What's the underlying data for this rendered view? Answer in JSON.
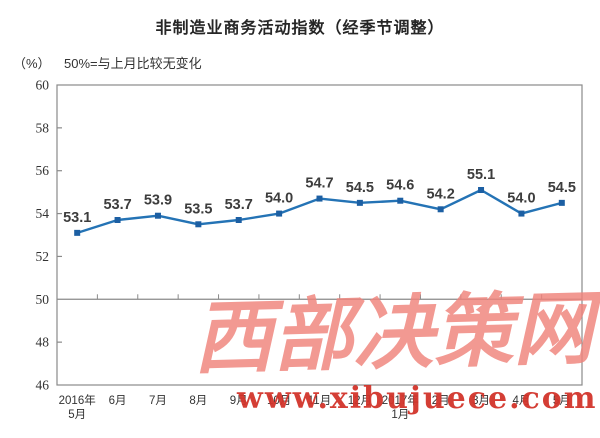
{
  "title": "非制造业商务活动指数（经季节调整）",
  "axis_unit": "（%）",
  "note": "50%=与上月比较无变化",
  "watermark": {
    "text": "西部决策网",
    "url": "www.xibujuece.com"
  },
  "colors": {
    "line": "#2473b5",
    "marker": "#1c5fa3",
    "axis": "#8a8a8a",
    "tick_label": "#333333",
    "data_label": "#3d3d3d",
    "watermark_main": "#f0837b",
    "watermark_url": "#d2342b"
  },
  "chart_data": {
    "type": "line",
    "title": "非制造业商务活动指数（经季节调整）",
    "subtitle": "50%=与上月比较无变化",
    "ylabel": "（%）",
    "xlabel": "",
    "categories": [
      "2016年5月",
      "6月",
      "7月",
      "8月",
      "9月",
      "10月",
      "11月",
      "12月",
      "2017年1月",
      "2月",
      "3月",
      "4月",
      "5月"
    ],
    "values": [
      53.1,
      53.7,
      53.9,
      53.5,
      53.7,
      54.0,
      54.7,
      54.5,
      54.6,
      54.2,
      55.1,
      54.0,
      54.5
    ],
    "ylim": [
      46,
      60
    ],
    "y_ticks": [
      60,
      58,
      56,
      54,
      52,
      50,
      48,
      46
    ],
    "reference_line": 50,
    "grid": false,
    "legend": "none",
    "data_labels": true
  }
}
